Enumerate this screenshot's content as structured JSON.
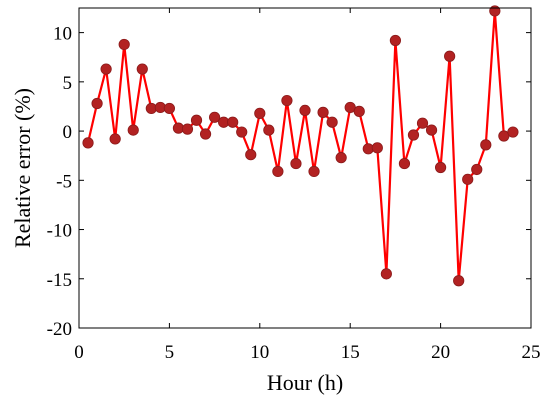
{
  "chart_data": {
    "type": "line",
    "xlabel": "Hour (h)",
    "ylabel": "Relative error (%)",
    "xlim": [
      0,
      25
    ],
    "ylim": [
      -20,
      12.5
    ],
    "xticks": [
      0,
      5,
      10,
      15,
      20,
      25
    ],
    "yticks": [
      10,
      5,
      0,
      -5,
      -10,
      -15,
      -20
    ],
    "grid": false,
    "legend": "none",
    "colors": {
      "line": "#ff0000",
      "marker": "#b22222",
      "marker_edge": "#8b1a1a"
    },
    "series": [
      {
        "x": [
          0.5,
          1,
          1.5,
          2,
          2.5,
          3,
          3.5,
          4,
          4.5,
          5,
          5.5,
          6,
          6.5,
          7,
          7.5,
          8,
          8.5,
          9,
          9.5,
          10,
          10.5,
          11,
          11.5,
          12,
          12.5,
          13,
          13.5,
          14,
          14.5,
          15,
          15.5,
          16,
          16.5,
          17,
          17.5,
          18,
          18.5,
          19,
          19.5,
          20,
          20.5,
          21,
          21.5,
          22,
          22.5,
          23,
          23.5,
          24
        ],
        "values": [
          -1.2,
          2.8,
          6.3,
          -0.8,
          8.8,
          0.1,
          6.3,
          2.3,
          2.4,
          2.3,
          0.3,
          0.2,
          1.1,
          -0.3,
          1.4,
          0.9,
          0.9,
          -0.1,
          -2.4,
          1.8,
          0.1,
          -4.1,
          3.1,
          -3.3,
          2.1,
          -4.1,
          1.9,
          0.9,
          -2.7,
          2.4,
          2.0,
          -1.8,
          -1.7,
          -14.5,
          9.2,
          -3.3,
          -0.4,
          0.8,
          0.1,
          -3.7,
          7.6,
          -15.2,
          -4.9,
          -3.9,
          -1.4,
          12.2,
          -0.5,
          -0.1
        ]
      }
    ]
  }
}
